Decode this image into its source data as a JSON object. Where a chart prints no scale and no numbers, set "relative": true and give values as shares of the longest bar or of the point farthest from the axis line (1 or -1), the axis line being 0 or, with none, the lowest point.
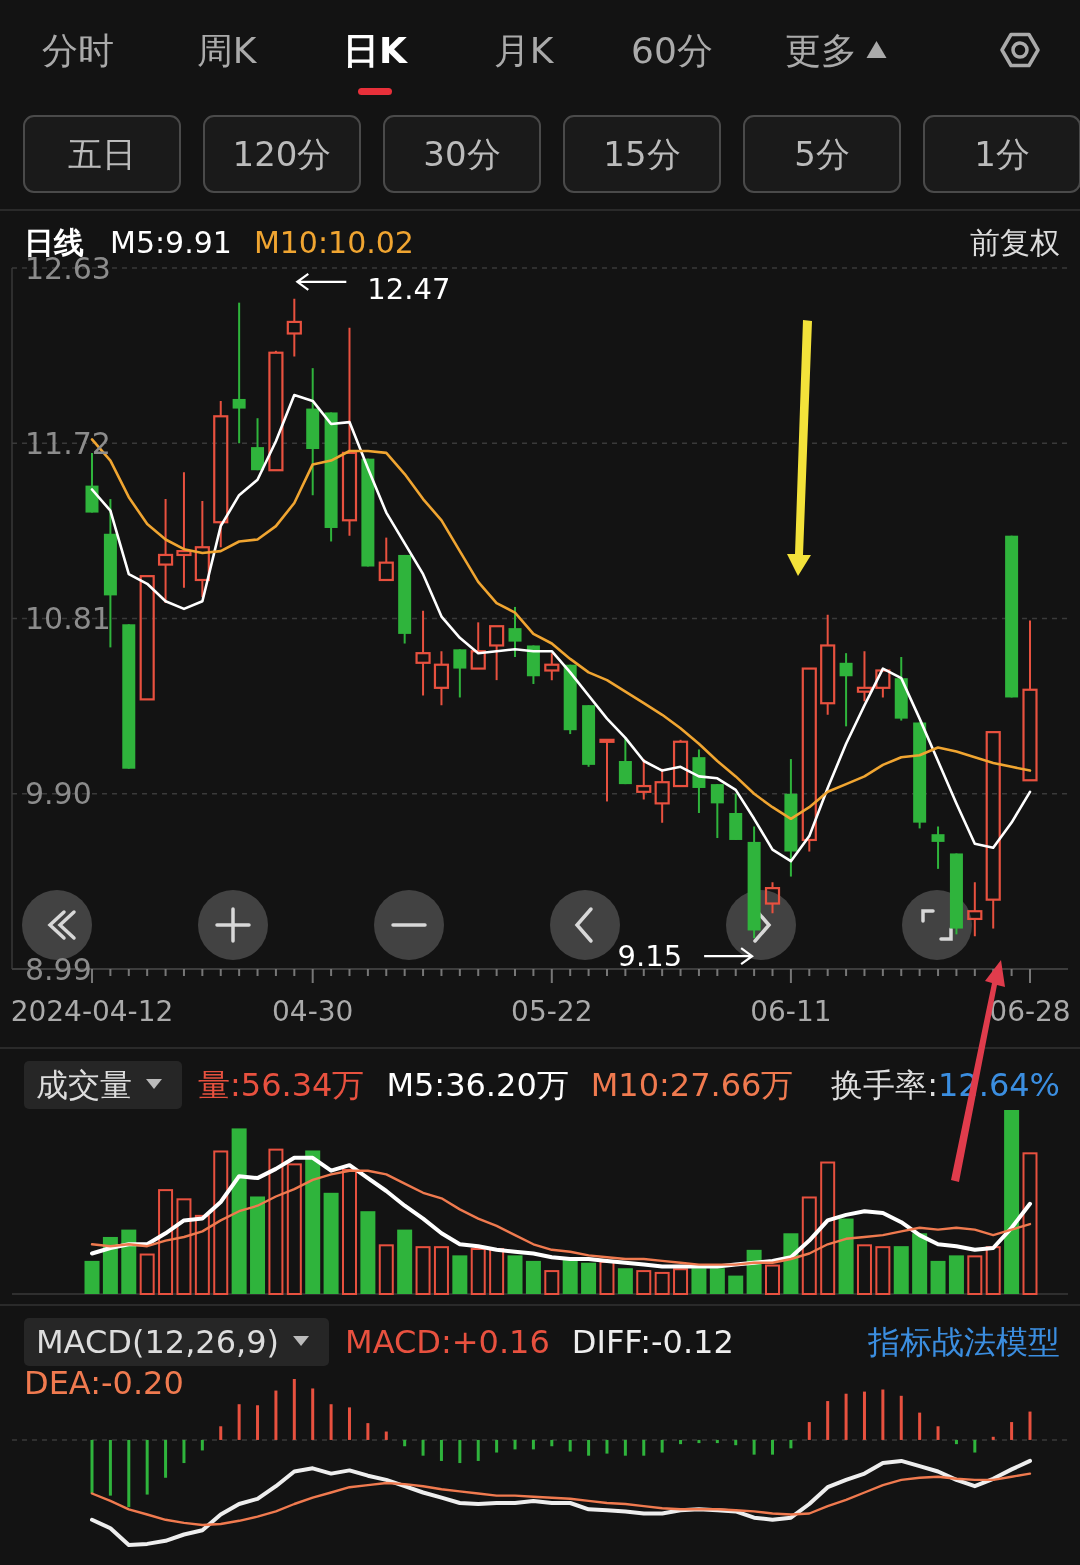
{
  "chart_data": [
    {
      "type": "other",
      "annotations": [
        "分时",
        "周K",
        "日K",
        "月K",
        "60分",
        "更多"
      ]
    },
    {
      "type": "other",
      "annotations": [
        "五日",
        "120分",
        "30分",
        "15分",
        "5分",
        "1分"
      ]
    },
    {
      "type": "candlestick",
      "title": "日线",
      "legend": "top",
      "grid": "y",
      "ylim": [
        8.99,
        12.63
      ],
      "yticks": [
        8.99,
        {
          "value": 9.9,
          "label": "9.90"
        },
        10.81,
        11.72,
        12.63
      ],
      "annotations": [
        "前复权",
        "12.47",
        "9.15"
      ],
      "categories": [
        "2024-04-12",
        null,
        null,
        null,
        null,
        null,
        null,
        null,
        null,
        null,
        null,
        null,
        "04-30",
        null,
        null,
        null,
        null,
        null,
        null,
        null,
        null,
        null,
        null,
        null,
        null,
        "05-22",
        null,
        null,
        null,
        null,
        null,
        null,
        null,
        null,
        null,
        null,
        null,
        null,
        "06-11",
        null,
        null,
        null,
        null,
        null,
        null,
        null,
        null,
        null,
        null,
        null,
        null,
        "06-28"
      ],
      "ohlc": [
        [
          11.5,
          11.67,
          11.36,
          11.36
        ],
        [
          11.25,
          11.43,
          10.66,
          10.93
        ],
        [
          10.78,
          10.78,
          10.03,
          10.03
        ],
        [
          10.39,
          11.03,
          10.39,
          11.03
        ],
        [
          11.09,
          11.43,
          10.89,
          11.14
        ],
        [
          11.14,
          11.57,
          10.97,
          11.16
        ],
        [
          11.01,
          11.42,
          10.92,
          11.18
        ],
        [
          11.31,
          11.94,
          11.18,
          11.86
        ],
        [
          11.95,
          12.45,
          11.72,
          11.9
        ],
        [
          11.7,
          11.85,
          11.58,
          11.58
        ],
        [
          11.58,
          12.2,
          11.58,
          12.19
        ],
        [
          12.29,
          12.47,
          12.17,
          12.35
        ],
        [
          11.9,
          12.11,
          11.45,
          11.69
        ],
        [
          11.88,
          11.88,
          11.21,
          11.28
        ],
        [
          11.32,
          12.32,
          11.24,
          11.67
        ],
        [
          11.64,
          11.64,
          11.08,
          11.08
        ],
        [
          11.01,
          11.23,
          11.01,
          11.1
        ],
        [
          11.14,
          11.14,
          10.68,
          10.73
        ],
        [
          10.58,
          10.85,
          10.41,
          10.63
        ],
        [
          10.45,
          10.64,
          10.36,
          10.57
        ],
        [
          10.65,
          10.65,
          10.4,
          10.55
        ],
        [
          10.55,
          10.79,
          10.55,
          10.64
        ],
        [
          10.67,
          10.77,
          10.49,
          10.77
        ],
        [
          10.76,
          10.87,
          10.61,
          10.69
        ],
        [
          10.67,
          10.67,
          10.47,
          10.51
        ],
        [
          10.54,
          10.63,
          10.49,
          10.57
        ],
        [
          10.57,
          10.57,
          10.21,
          10.23
        ],
        [
          10.36,
          10.36,
          10.04,
          10.05
        ],
        [
          10.17,
          10.18,
          9.86,
          10.18
        ],
        [
          10.07,
          10.19,
          9.95,
          9.95
        ],
        [
          9.91,
          10.08,
          9.87,
          9.94
        ],
        [
          9.85,
          10.03,
          9.75,
          9.96
        ],
        [
          9.94,
          10.18,
          9.94,
          10.17
        ],
        [
          10.09,
          10.13,
          9.8,
          9.93
        ],
        [
          9.95,
          9.95,
          9.67,
          9.85
        ],
        [
          9.8,
          9.9,
          9.66,
          9.66
        ],
        [
          9.65,
          9.73,
          9.15,
          9.19
        ],
        [
          9.33,
          9.44,
          9.28,
          9.41
        ],
        [
          9.9,
          10.08,
          9.47,
          9.6
        ],
        [
          9.66,
          10.55,
          9.6,
          10.55
        ],
        [
          10.37,
          10.83,
          10.31,
          10.67
        ],
        [
          10.58,
          10.63,
          10.25,
          10.51
        ],
        [
          10.43,
          10.64,
          10.38,
          10.45
        ],
        [
          10.45,
          10.55,
          10.4,
          10.54
        ],
        [
          10.5,
          10.61,
          10.28,
          10.29
        ],
        [
          10.27,
          10.27,
          9.72,
          9.75
        ],
        [
          9.69,
          9.73,
          9.51,
          9.65
        ],
        [
          9.59,
          9.59,
          9.17,
          9.2
        ],
        [
          9.25,
          9.44,
          9.16,
          9.29
        ],
        [
          9.35,
          10.22,
          9.2,
          10.22
        ],
        [
          11.24,
          11.24,
          10.4,
          10.4
        ],
        [
          9.97,
          10.8,
          9.97,
          10.44
        ]
      ],
      "colors": [
        "#2fb43c",
        "#2fb43c",
        "#2fb43c",
        "#e8513f",
        "#e8513f",
        "#e8513f",
        "#e8513f",
        "#e8513f",
        "#2fb43c",
        "#2fb43c",
        "#e8513f",
        "#e8513f",
        "#2fb43c",
        "#2fb43c",
        "#e8513f",
        "#2fb43c",
        "#e8513f",
        "#2fb43c",
        "#e8513f",
        "#e8513f",
        "#2fb43c",
        "#e8513f",
        "#e8513f",
        "#2fb43c",
        "#2fb43c",
        "#e8513f",
        "#2fb43c",
        "#2fb43c",
        "#e8513f",
        "#2fb43c",
        "#e8513f",
        "#e8513f",
        "#e8513f",
        "#2fb43c",
        "#2fb43c",
        "#2fb43c",
        "#2fb43c",
        "#e8513f",
        "#2fb43c",
        "#e8513f",
        "#e8513f",
        "#2fb43c",
        "#e8513f",
        "#e8513f",
        "#2fb43c",
        "#2fb43c",
        "#2fb43c",
        "#2fb43c",
        "#e8513f",
        "#e8513f",
        "#2fb43c",
        "#e8513f"
      ],
      "series": [
        {
          "type": "line",
          "name": "M5:9.91",
          "color": "#ffffff",
          "values": [
            11.48,
            11.37,
            11.04,
            10.99,
            10.9,
            10.86,
            10.9,
            11.29,
            11.45,
            11.53,
            11.73,
            11.97,
            11.94,
            11.82,
            11.83,
            11.59,
            11.36,
            11.2,
            11.04,
            10.82,
            10.71,
            10.63,
            10.64,
            10.65,
            10.64,
            10.64,
            10.53,
            10.41,
            10.29,
            10.19,
            10.07,
            10.02,
            10.04,
            9.99,
            9.98,
            9.92,
            9.77,
            9.61,
            9.55,
            9.68,
            9.93,
            10.16,
            10.36,
            10.55,
            10.5,
            10.29,
            10.07,
            9.85,
            9.64,
            9.62,
            9.75,
            9.91
          ]
        },
        {
          "type": "line",
          "name": "M10:10.02",
          "color": "#f0a531",
          "values": [
            11.74,
            11.63,
            11.44,
            11.3,
            11.22,
            11.17,
            11.15,
            11.16,
            11.21,
            11.22,
            11.29,
            11.41,
            11.61,
            11.63,
            11.68,
            11.68,
            11.67,
            11.56,
            11.43,
            11.32,
            11.16,
            11.0,
            10.89,
            10.84,
            10.73,
            10.68,
            10.6,
            10.53,
            10.49,
            10.43,
            10.37,
            10.31,
            10.24,
            10.16,
            10.07,
            9.99,
            9.9,
            9.83,
            9.77,
            9.83,
            9.91,
            9.95,
            9.99,
            10.05,
            10.09,
            10.1,
            10.14,
            10.12,
            10.09,
            10.06,
            10.04,
            10.02
          ]
        }
      ]
    },
    {
      "type": "bar",
      "relative": true,
      "title": "成交量",
      "legend": "top",
      "annotations": [
        "换手率:12.64%"
      ],
      "categories": [
        null,
        null,
        null,
        null,
        null,
        null,
        null,
        null,
        null,
        null,
        null,
        null,
        null,
        null,
        null,
        null,
        null,
        null,
        null,
        null,
        null,
        null,
        null,
        null,
        null,
        null,
        null,
        null,
        null,
        null,
        null,
        null,
        null,
        null,
        null,
        null,
        null,
        null,
        null,
        null,
        null,
        null,
        null,
        null,
        null,
        null,
        null,
        null,
        null,
        null,
        null,
        null
      ],
      "series": [
        {
          "name": "量:56.34万",
          "color": "#e8513f",
          "colors": [
            "#2fb43c",
            "#2fb43c",
            "#2fb43c",
            "#e8513f",
            "#e8513f",
            "#e8513f",
            "#e8513f",
            "#e8513f",
            "#2fb43c",
            "#2fb43c",
            "#e8513f",
            "#e8513f",
            "#2fb43c",
            "#2fb43c",
            "#e8513f",
            "#2fb43c",
            "#e8513f",
            "#2fb43c",
            "#e8513f",
            "#e8513f",
            "#2fb43c",
            "#e8513f",
            "#e8513f",
            "#2fb43c",
            "#2fb43c",
            "#e8513f",
            "#2fb43c",
            "#2fb43c",
            "#e8513f",
            "#2fb43c",
            "#e8513f",
            "#e8513f",
            "#e8513f",
            "#2fb43c",
            "#2fb43c",
            "#2fb43c",
            "#2fb43c",
            "#e8513f",
            "#2fb43c",
            "#e8513f",
            "#e8513f",
            "#2fb43c",
            "#e8513f",
            "#e8513f",
            "#2fb43c",
            "#2fb43c",
            "#2fb43c",
            "#2fb43c",
            "#e8513f",
            "#e8513f",
            "#2fb43c",
            "#e8513f"
          ],
          "values": [
            0.18,
            0.31,
            0.35,
            0.22,
            0.57,
            0.52,
            0.43,
            0.78,
            0.9,
            0.53,
            0.79,
            0.71,
            0.78,
            0.55,
            0.68,
            0.45,
            0.27,
            0.35,
            0.26,
            0.26,
            0.21,
            0.25,
            0.25,
            0.21,
            0.18,
            0.13,
            0.19,
            0.17,
            0.18,
            0.14,
            0.13,
            0.12,
            0.14,
            0.14,
            0.14,
            0.1,
            0.24,
            0.16,
            0.33,
            0.53,
            0.72,
            0.41,
            0.27,
            0.26,
            0.26,
            0.33,
            0.18,
            0.21,
            0.21,
            0.26,
            1,
            0.77
          ]
        },
        {
          "type": "line",
          "name": "M5:36.20万",
          "color": "#ffffff",
          "values": [
            0.22,
            0.25,
            0.27,
            0.27,
            0.33,
            0.4,
            0.41,
            0.5,
            0.64,
            0.63,
            0.68,
            0.74,
            0.74,
            0.67,
            0.7,
            0.63,
            0.56,
            0.48,
            0.41,
            0.33,
            0.27,
            0.26,
            0.24,
            0.23,
            0.22,
            0.2,
            0.19,
            0.19,
            0.18,
            0.17,
            0.16,
            0.15,
            0.15,
            0.15,
            0.15,
            0.16,
            0.17,
            0.18,
            0.2,
            0.29,
            0.4,
            0.43,
            0.45,
            0.44,
            0.39,
            0.32,
            0.27,
            0.26,
            0.24,
            0.25,
            0.36,
            0.49
          ]
        },
        {
          "type": "line",
          "name": "M10:27.66万",
          "color": "#f07a4f",
          "values": [
            0.27,
            0.26,
            0.27,
            0.26,
            0.29,
            0.31,
            0.34,
            0.4,
            0.45,
            0.48,
            0.53,
            0.57,
            0.62,
            0.65,
            0.67,
            0.67,
            0.65,
            0.6,
            0.55,
            0.52,
            0.46,
            0.41,
            0.37,
            0.32,
            0.27,
            0.24,
            0.23,
            0.21,
            0.2,
            0.19,
            0.19,
            0.18,
            0.17,
            0.16,
            0.16,
            0.16,
            0.17,
            0.17,
            0.19,
            0.22,
            0.27,
            0.3,
            0.31,
            0.32,
            0.34,
            0.36,
            0.35,
            0.36,
            0.35,
            0.32,
            0.35,
            0.38
          ]
        }
      ]
    },
    {
      "type": "bar",
      "relative": true,
      "title": "MACD(12,26,9)",
      "legend": "top",
      "ref_lines": [
        {
          "axis": "y",
          "value": 0,
          "line_style": "dashed",
          "color": "#3a3a3a"
        }
      ],
      "annotations": [
        "指标战法模型"
      ],
      "categories": [
        null,
        null,
        null,
        null,
        null,
        null,
        null,
        null,
        null,
        null,
        null,
        null,
        null,
        null,
        null,
        null,
        null,
        null,
        null,
        null,
        null,
        null,
        null,
        null,
        null,
        null,
        null,
        null,
        null,
        null,
        null,
        null,
        null,
        null,
        null,
        null,
        null,
        null,
        null,
        null,
        null,
        null,
        null,
        null,
        null,
        null,
        null,
        null,
        null,
        null,
        null,
        null
      ],
      "series": [
        {
          "name": "MACD:+0.16",
          "color": "#e8513f",
          "colors": [
            "#2fb43c",
            "#2fb43c",
            "#2fb43c",
            "#2fb43c",
            "#2fb43c",
            "#2fb43c",
            "#2fb43c",
            "#e8513f",
            "#e8513f",
            "#e8513f",
            "#e8513f",
            "#e8513f",
            "#e8513f",
            "#e8513f",
            "#e8513f",
            "#e8513f",
            "#e8513f",
            "#2fb43c",
            "#2fb43c",
            "#2fb43c",
            "#2fb43c",
            "#2fb43c",
            "#2fb43c",
            "#2fb43c",
            "#2fb43c",
            "#2fb43c",
            "#2fb43c",
            "#2fb43c",
            "#2fb43c",
            "#2fb43c",
            "#2fb43c",
            "#2fb43c",
            "#2fb43c",
            "#2fb43c",
            "#2fb43c",
            "#2fb43c",
            "#2fb43c",
            "#2fb43c",
            "#2fb43c",
            "#e8513f",
            "#e8513f",
            "#e8513f",
            "#e8513f",
            "#e8513f",
            "#e8513f",
            "#e8513f",
            "#e8513f",
            "#2fb43c",
            "#2fb43c",
            "#e8513f",
            "#e8513f",
            "#e8513f"
          ],
          "values": [
            -0.51,
            -0.53,
            -0.64,
            -0.52,
            -0.36,
            -0.22,
            -0.1,
            0.13,
            0.34,
            0.33,
            0.47,
            0.58,
            0.49,
            0.34,
            0.31,
            0.16,
            0.08,
            -0.06,
            -0.15,
            -0.2,
            -0.22,
            -0.2,
            -0.12,
            -0.09,
            -0.09,
            -0.06,
            -0.11,
            -0.15,
            -0.13,
            -0.15,
            -0.15,
            -0.12,
            -0.04,
            -0.03,
            -0.03,
            -0.05,
            -0.14,
            -0.14,
            -0.08,
            0.17,
            0.37,
            0.44,
            0.46,
            0.48,
            0.42,
            0.26,
            0.13,
            -0.04,
            -0.12,
            0.03,
            0.17,
            0.27
          ]
        },
        {
          "type": "line",
          "name": "DIFF:-0.12",
          "color": "#eeeeee",
          "values": [
            -0.76,
            -0.84,
            -1,
            -0.99,
            -0.96,
            -0.9,
            -0.86,
            -0.71,
            -0.61,
            -0.56,
            -0.44,
            -0.3,
            -0.27,
            -0.32,
            -0.29,
            -0.34,
            -0.38,
            -0.44,
            -0.5,
            -0.55,
            -0.6,
            -0.61,
            -0.6,
            -0.6,
            -0.58,
            -0.6,
            -0.6,
            -0.66,
            -0.67,
            -0.68,
            -0.7,
            -0.7,
            -0.67,
            -0.66,
            -0.67,
            -0.68,
            -0.74,
            -0.76,
            -0.74,
            -0.61,
            -0.45,
            -0.38,
            -0.32,
            -0.22,
            -0.2,
            -0.25,
            -0.3,
            -0.38,
            -0.44,
            -0.37,
            -0.28,
            -0.2
          ]
        },
        {
          "type": "line",
          "name": "DEA:-0.20",
          "color": "#f07a4f",
          "values": [
            -0.51,
            -0.58,
            -0.66,
            -0.71,
            -0.76,
            -0.79,
            -0.81,
            -0.8,
            -0.77,
            -0.73,
            -0.68,
            -0.61,
            -0.55,
            -0.5,
            -0.45,
            -0.43,
            -0.41,
            -0.42,
            -0.44,
            -0.47,
            -0.49,
            -0.51,
            -0.53,
            -0.53,
            -0.54,
            -0.55,
            -0.56,
            -0.58,
            -0.6,
            -0.61,
            -0.63,
            -0.65,
            -0.66,
            -0.66,
            -0.66,
            -0.67,
            -0.68,
            -0.7,
            -0.71,
            -0.7,
            -0.63,
            -0.57,
            -0.5,
            -0.43,
            -0.38,
            -0.36,
            -0.35,
            -0.37,
            -0.38,
            -0.38,
            -0.35,
            -0.32
          ]
        }
      ]
    }
  ]
}
